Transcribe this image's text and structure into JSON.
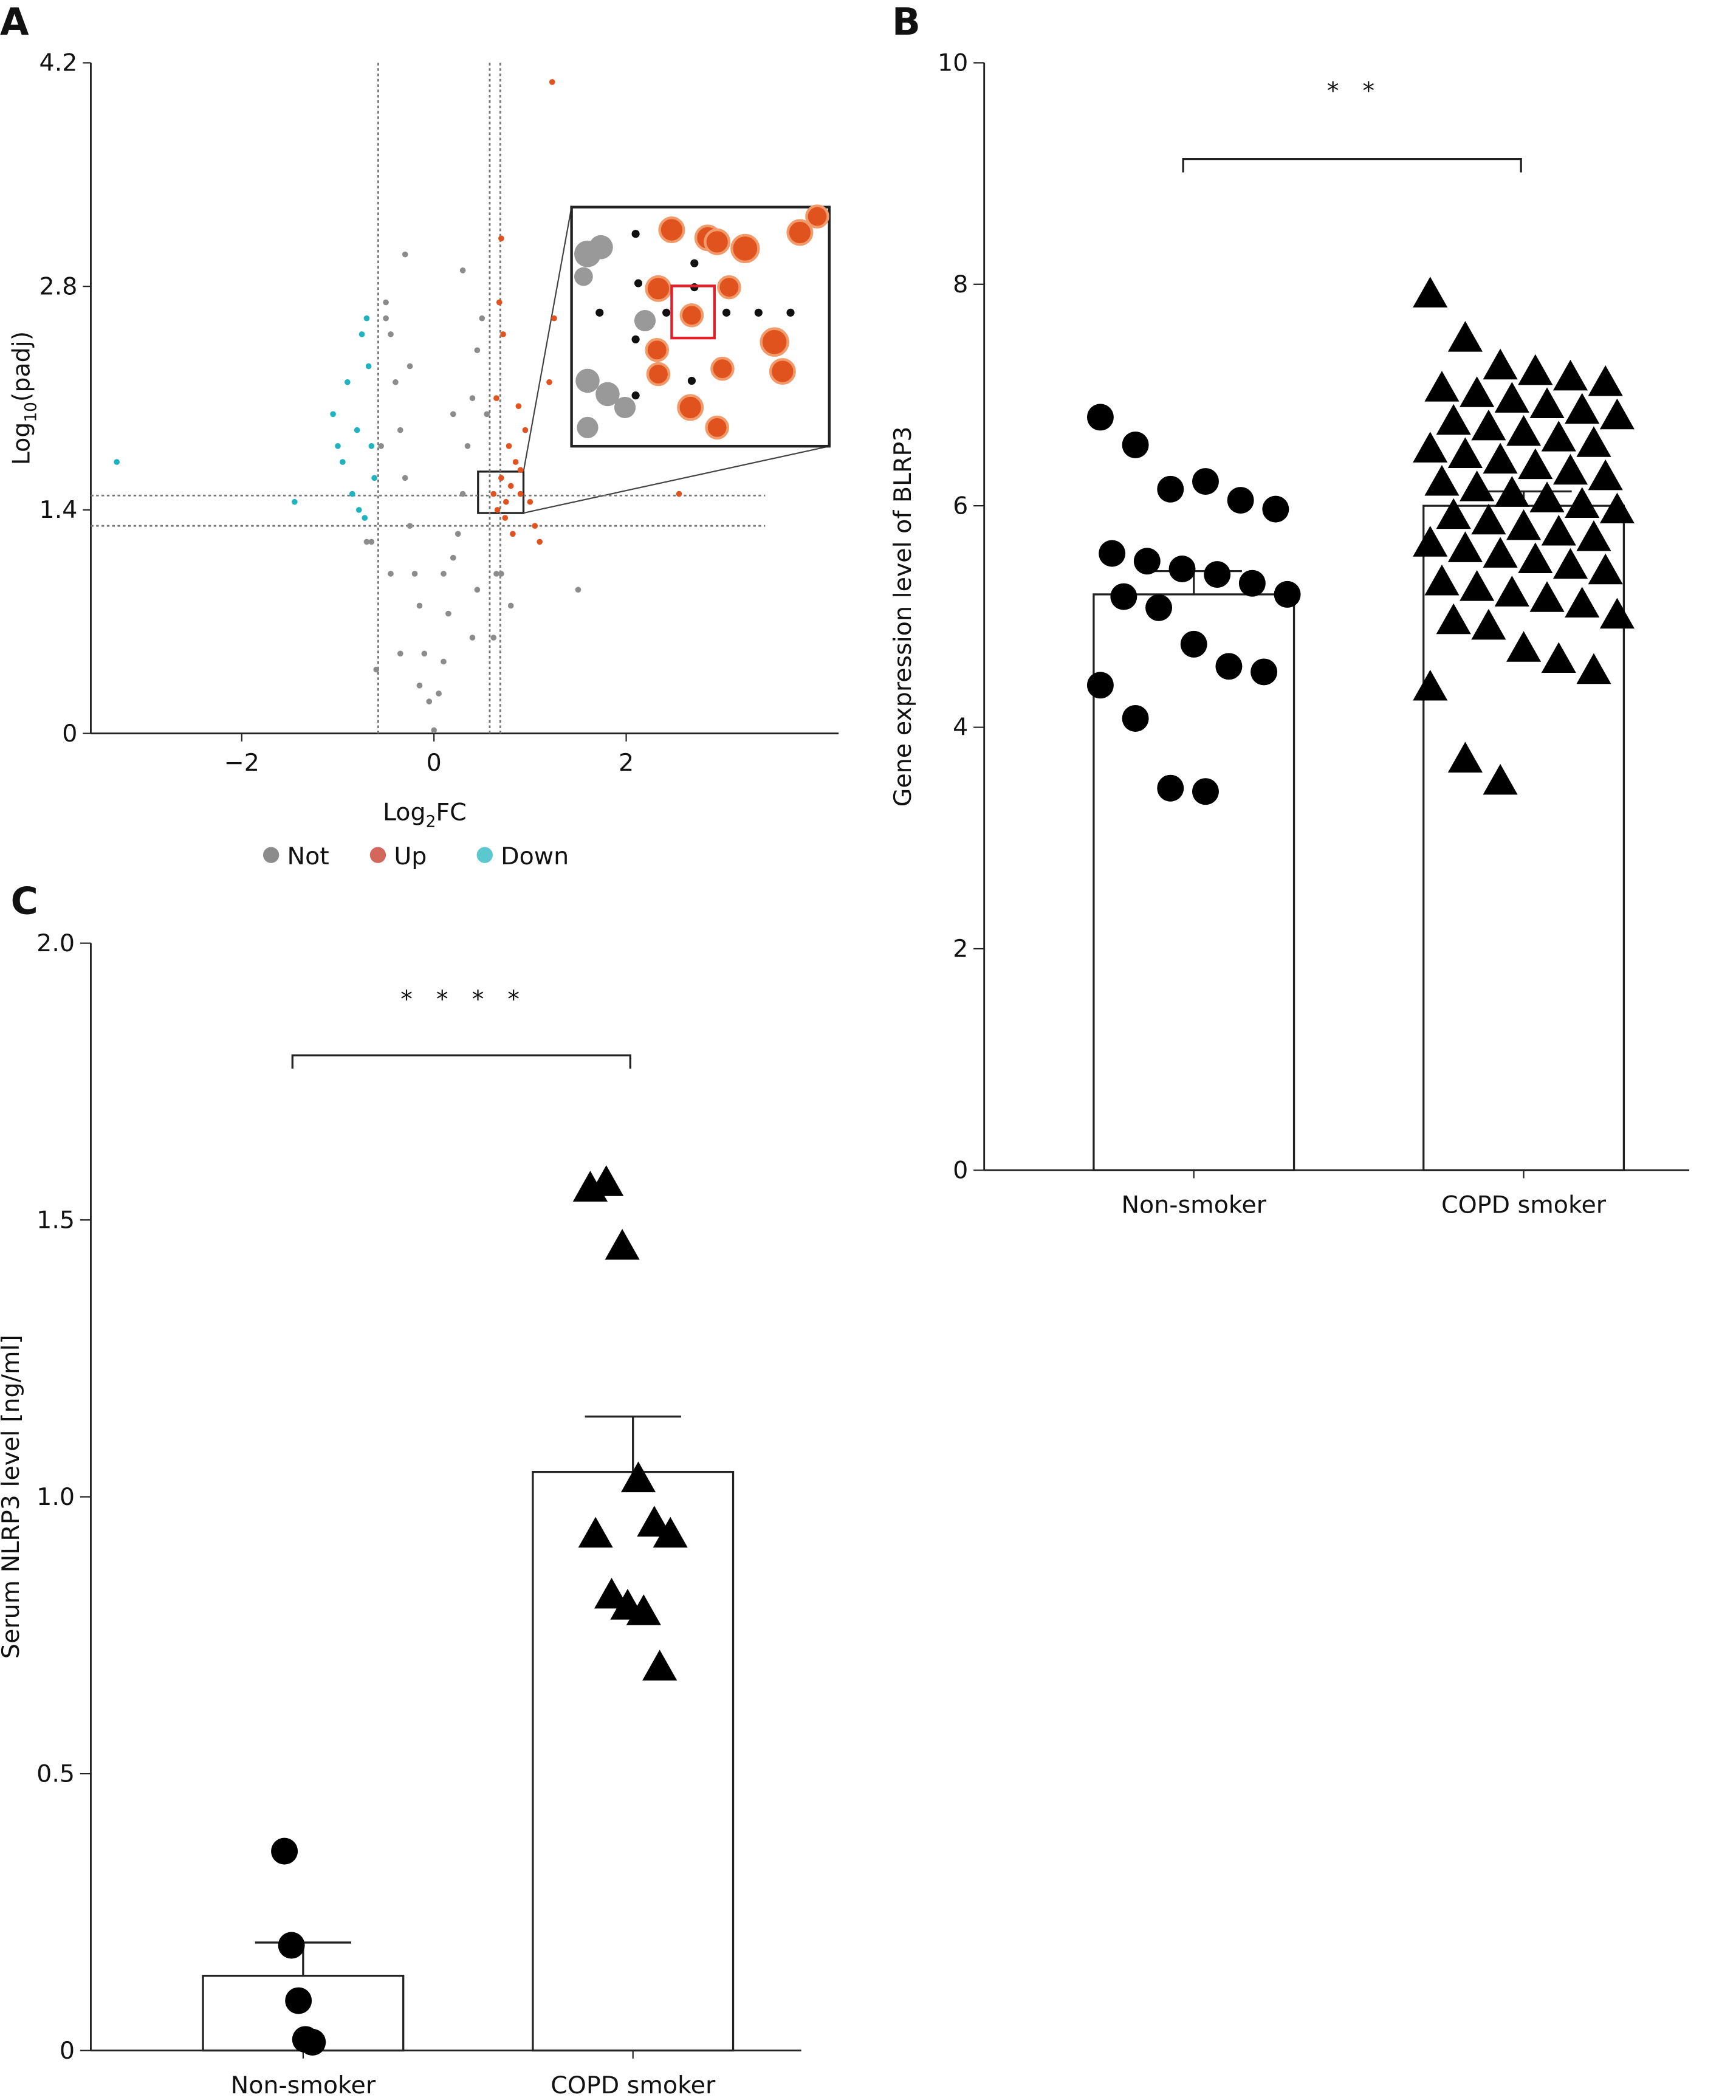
{
  "chart_data": [
    {
      "type": "scatter",
      "panel": "A",
      "x_label": {
        "base": "Log",
        "sub": "2",
        "rest": "FC"
      },
      "y_label": {
        "base": "Log",
        "sub": "10",
        "rest": "(padj)"
      },
      "xlim": [
        -3.57,
        4.21
      ],
      "ylim": [
        0,
        4.2
      ],
      "xticks": [
        {
          "value": -2,
          "label": "−2"
        },
        0,
        2
      ],
      "yticks": [
        0,
        1.4,
        2.8,
        4.2
      ],
      "vlines": [
        -0.58,
        0.58,
        0.69
      ],
      "hlines": [
        1.49,
        1.3
      ],
      "series": [
        {
          "name": "Not",
          "color": "#8c8c8c",
          "legend_color": "#8c8c8c",
          "x": [
            0,
            -0.05,
            0.05,
            -0.1,
            0.1,
            -0.15,
            0.15,
            -0.2,
            0.2,
            -0.25,
            0.25,
            -0.3,
            0.3,
            -0.35,
            0.35,
            -0.4,
            0.4,
            -0.45,
            0.45,
            -0.5,
            0.5,
            -0.45,
            0.45,
            -0.35,
            0.4,
            -0.55,
            0.55,
            -0.3,
            -0.5,
            0.3,
            -0.6,
            0.62,
            -0.65,
            0.7,
            -0.25,
            0.2,
            -0.7,
            0.8,
            -0.15,
            0.1,
            0.65,
            1.5
          ],
          "values": [
            0.02,
            0.2,
            0.25,
            0.5,
            0.45,
            0.8,
            0.75,
            1.0,
            1.1,
            1.3,
            1.25,
            1.6,
            1.5,
            1.9,
            1.8,
            2.2,
            2.1,
            2.5,
            2.4,
            2.7,
            2.6,
            1.0,
            0.9,
            0.5,
            0.6,
            1.8,
            2.0,
            3.0,
            2.6,
            2.9,
            0.4,
            0.6,
            1.2,
            1.0,
            2.3,
            2.0,
            1.2,
            0.8,
            0.3,
            1.0,
            1.0,
            0.9
          ]
        },
        {
          "name": "Up",
          "color": "#e0521e",
          "legend_color": "#d4675c",
          "x": [
            0.62,
            0.7,
            0.75,
            0.8,
            0.85,
            0.9,
            0.65,
            0.72,
            0.78,
            0.95,
            1.0,
            0.68,
            0.74,
            0.82,
            1.1,
            1.2,
            1.23,
            1.25,
            0.66,
            0.9,
            0.7,
            2.55,
            1.05,
            0.88
          ],
          "values": [
            1.5,
            1.6,
            1.45,
            1.55,
            1.7,
            1.5,
            2.1,
            2.5,
            1.8,
            1.9,
            1.45,
            2.7,
            1.35,
            1.25,
            1.2,
            2.2,
            4.08,
            2.6,
            1.4,
            1.65,
            3.1,
            1.5,
            1.3,
            2.05
          ]
        },
        {
          "name": "Down",
          "color": "#1fb3c0",
          "legend_color": "#5bc8d0",
          "x": [
            -3.3,
            -1.45,
            -1.05,
            -0.9,
            -0.8,
            -0.75,
            -0.7,
            -0.65,
            -0.95,
            -0.85,
            -0.72,
            -0.68,
            -1.0,
            -0.78,
            -0.62
          ],
          "values": [
            1.7,
            1.45,
            2.0,
            2.2,
            1.9,
            2.5,
            2.6,
            1.8,
            1.7,
            1.5,
            1.35,
            2.3,
            1.8,
            1.4,
            1.6
          ]
        }
      ]
    },
    {
      "type": "bar",
      "panel": "B",
      "y_label": "Gene expression level of BLRP3",
      "categories": [
        "Non-smoker",
        "COPD smoker"
      ],
      "values": [
        5.2,
        6.0
      ],
      "errors": [
        0.21,
        0.13
      ],
      "markers": [
        "circle",
        "triangle"
      ],
      "points": [
        [
          6.8,
          6.55,
          6.15,
          6.22,
          6.05,
          5.97,
          5.57,
          5.5,
          5.43,
          5.38,
          5.3,
          5.2,
          5.18,
          5.08,
          4.75,
          4.55,
          4.5,
          4.38,
          4.08,
          3.45,
          3.42
        ],
        [
          7.9,
          7.5,
          7.25,
          7.2,
          7.15,
          7.1,
          7.05,
          7.0,
          6.95,
          6.9,
          6.85,
          6.8,
          6.75,
          6.7,
          6.65,
          6.6,
          6.55,
          6.5,
          6.45,
          6.4,
          6.35,
          6.3,
          6.25,
          6.2,
          6.15,
          6.1,
          6.05,
          6.0,
          5.95,
          5.9,
          5.85,
          5.8,
          5.75,
          5.7,
          5.65,
          5.6,
          5.55,
          5.5,
          5.45,
          5.4,
          5.3,
          5.25,
          5.2,
          5.15,
          5.1,
          5.0,
          4.95,
          4.9,
          4.7,
          4.6,
          4.5,
          4.35,
          3.7,
          3.5
        ]
      ],
      "significance": "* *",
      "ylim": [
        0,
        10
      ],
      "yticks": [
        0,
        2,
        4,
        6,
        8,
        10
      ]
    },
    {
      "type": "bar",
      "panel": "C",
      "y_label": "Serum NLRP3 level [ng/ml]",
      "categories": [
        "Non-smoker",
        "COPD smoker"
      ],
      "values": [
        0.135,
        1.045
      ],
      "errors": [
        0.06,
        0.1
      ],
      "markers": [
        "circle",
        "triangle"
      ],
      "points": [
        [
          0.36,
          0.19,
          0.09,
          0.02,
          0.015
        ],
        [
          1.555,
          1.565,
          1.45,
          1.03,
          0.95,
          0.93,
          0.93,
          0.82,
          0.8,
          0.79,
          0.69
        ]
      ],
      "significance": "* * * *",
      "ylim": [
        0,
        2
      ],
      "yticks": [
        0,
        0.5,
        {
          "value": 1,
          "label": "1.0"
        },
        1.5,
        {
          "value": 2,
          "label": "2.0"
        }
      ]
    }
  ]
}
